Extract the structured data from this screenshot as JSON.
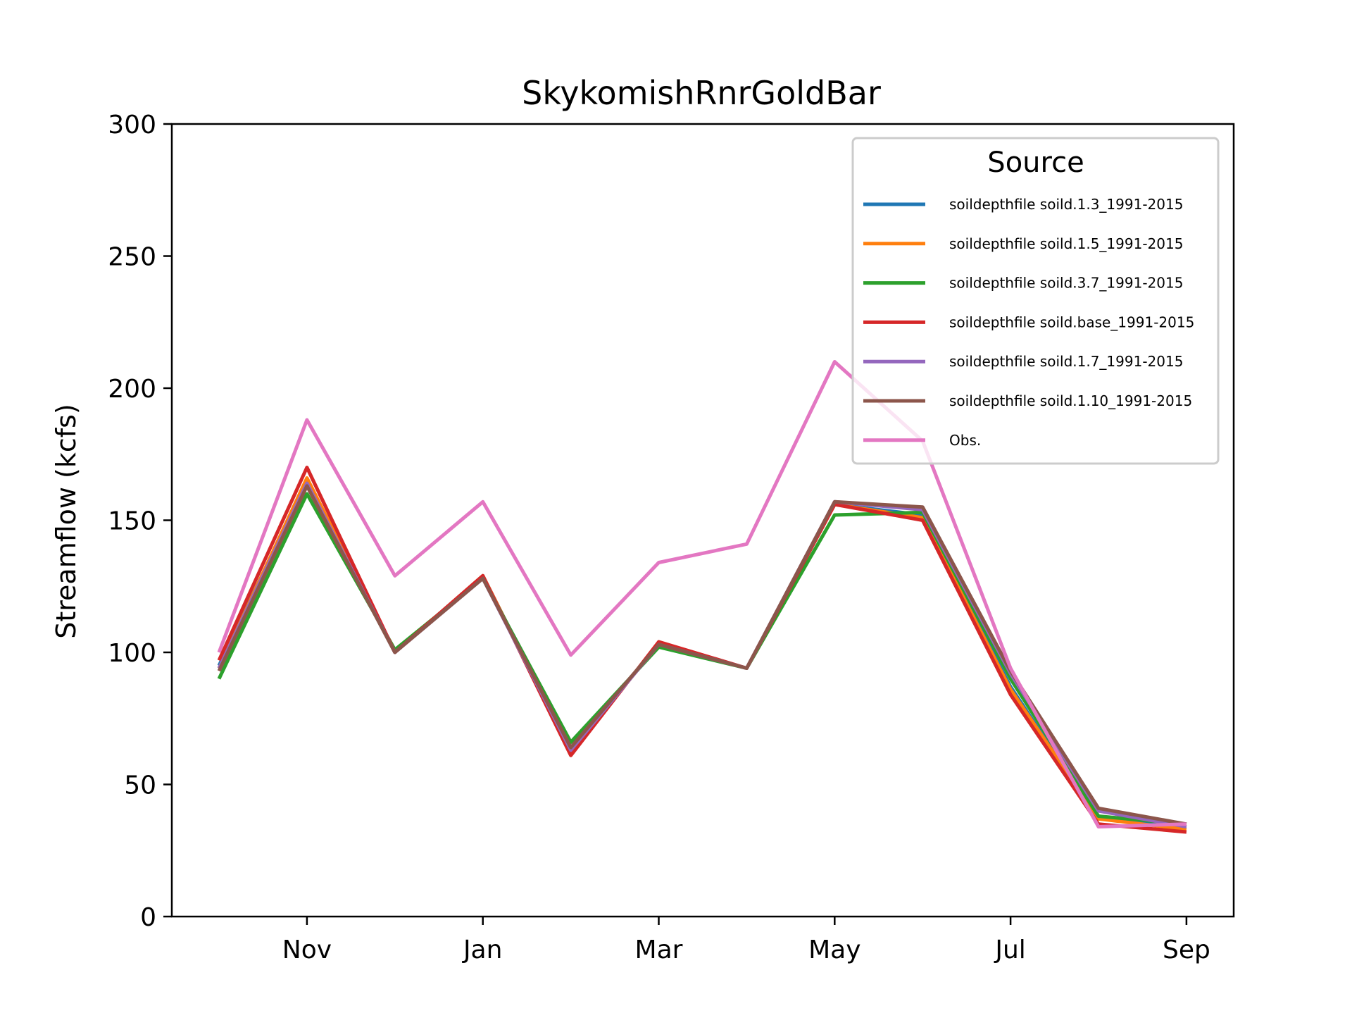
{
  "chart_data": {
    "type": "line",
    "title": "SkykomishRnrGoldBar",
    "xlabel": "",
    "ylabel": "Streamflow (kcfs)",
    "ylim": [
      0,
      300
    ],
    "yticks": [
      0,
      50,
      100,
      150,
      200,
      250,
      300
    ],
    "x": [
      "Oct",
      "Nov",
      "Dec",
      "Jan",
      "Feb",
      "Mar",
      "Apr",
      "May",
      "Jun",
      "Jul",
      "Aug",
      "Sep"
    ],
    "xtick_labels": [
      "Nov",
      "Jan",
      "Mar",
      "May",
      "Jul",
      "Sep"
    ],
    "grid": false,
    "legend": {
      "title": "Source",
      "position": "upper-right"
    },
    "series": [
      {
        "name": "soildepthfile soild.1.3_1991-2015",
        "color": "#1f77b4",
        "values": [
          95,
          165,
          100,
          129,
          63,
          103,
          94,
          156,
          152,
          87,
          37,
          34
        ]
      },
      {
        "name": "soildepthfile soild.1.5_1991-2015",
        "color": "#ff7f0e",
        "values": [
          94,
          166,
          100,
          129,
          63,
          103,
          94,
          156,
          151,
          86,
          37,
          33
        ]
      },
      {
        "name": "soildepthfile soild.3.7_1991-2015",
        "color": "#2ca02c",
        "values": [
          90,
          160,
          101,
          128,
          66,
          102,
          94,
          152,
          153,
          90,
          38,
          35
        ]
      },
      {
        "name": "soildepthfile soild.base_1991-2015",
        "color": "#d62728",
        "values": [
          97,
          170,
          100,
          129,
          61,
          104,
          94,
          156,
          150,
          84,
          35,
          32
        ]
      },
      {
        "name": "soildepthfile soild.1.7_1991-2015",
        "color": "#9467bd",
        "values": [
          94,
          164,
          100,
          128,
          63,
          103,
          94,
          157,
          154,
          92,
          40,
          34
        ]
      },
      {
        "name": "soildepthfile soild.1.10_1991-2015",
        "color": "#8c564b",
        "values": [
          93,
          163,
          100,
          128,
          64,
          103,
          94,
          157,
          155,
          93,
          41,
          35
        ]
      },
      {
        "name": "Obs.",
        "color": "#e377c2",
        "values": [
          100,
          188,
          129,
          157,
          99,
          134,
          141,
          210,
          180,
          94,
          34,
          35
        ]
      }
    ]
  }
}
